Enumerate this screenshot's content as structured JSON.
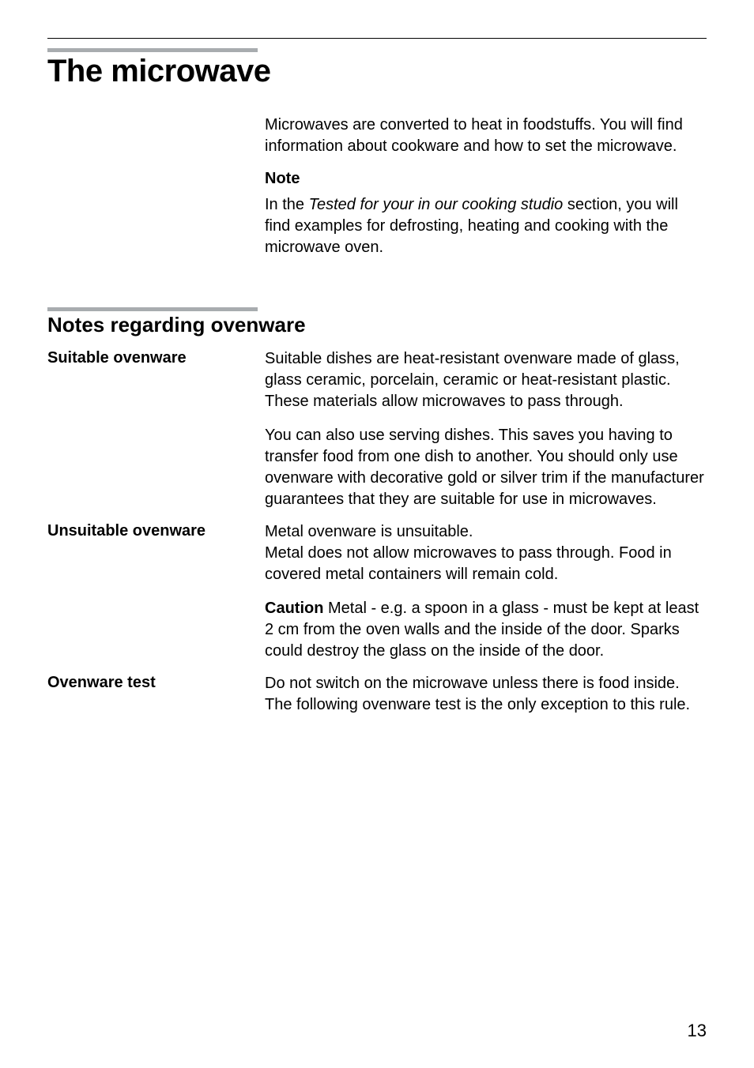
{
  "colors": {
    "text": "#000000",
    "background": "#ffffff",
    "gray_bar": "#a8acaf",
    "rule": "#000000"
  },
  "typography": {
    "main_title_size": 40,
    "sub_title_size": 26,
    "body_size": 20,
    "page_num_size": 22
  },
  "main_title": "The microwave",
  "intro": {
    "paragraph1": "Microwaves are converted to heat in foodstuffs. You will find information about cookware and how to set the microwave.",
    "note_label": "Note",
    "note_text_prefix": "In the ",
    "note_text_italic": "Tested for your in our cooking studio",
    "note_text_suffix": " section, you will find examples for defrosting, heating and cooking with the microwave oven."
  },
  "subsection_title": "Notes regarding ovenware",
  "rows": [
    {
      "label": "Suitable ovenware",
      "paragraphs": [
        {
          "text": "Suitable dishes are heat-resistant ovenware made of glass, glass ceramic, porcelain, ceramic or heat-resistant plastic. These materials allow microwaves to pass through."
        },
        {
          "text": "You can also use serving dishes. This saves you having to transfer food from one dish to another. You should only use ovenware with decorative gold or silver trim if the manufacturer guarantees that they are suitable for use in microwaves."
        }
      ]
    },
    {
      "label": "Unsuitable ovenware",
      "paragraphs": [
        {
          "text": "Metal ovenware is unsuitable.\nMetal does not allow microwaves to pass through. Food in covered metal containers will remain cold."
        },
        {
          "bold_prefix": "Caution",
          "text": " Metal - e.g. a spoon in a glass - must be kept at least 2 cm from the oven walls and the inside of the door. Sparks could destroy the glass on the inside of the door."
        }
      ]
    },
    {
      "label": "Ovenware test",
      "paragraphs": [
        {
          "text": "Do not switch on the microwave unless there is food inside.\nThe following ovenware test is the only exception to this rule."
        }
      ]
    }
  ],
  "page_number": "13"
}
